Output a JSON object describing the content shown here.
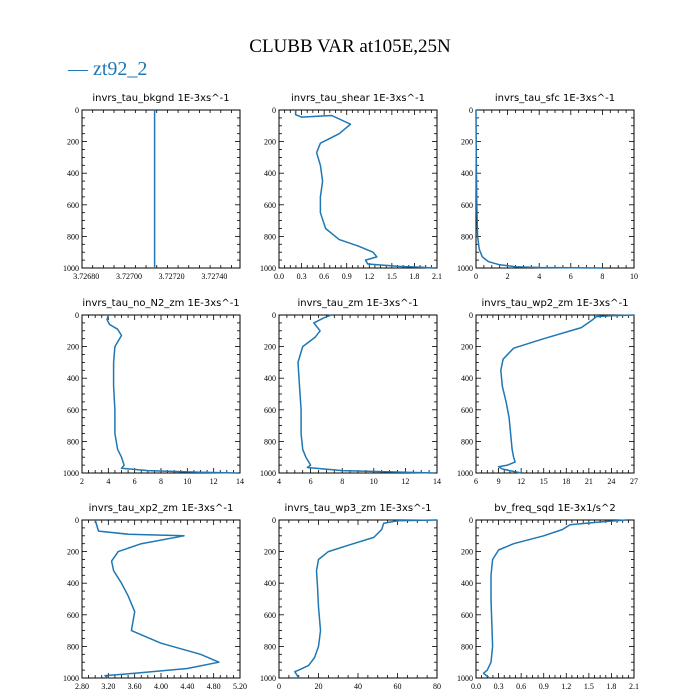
{
  "title": "CLUBB VAR at105E,25N",
  "legend": {
    "label": "— zt92_2",
    "color": "#1f77b4"
  },
  "chart_data": [
    {
      "type": "line",
      "title": "invrs_tau_bkgnd   1E-3xs^-1",
      "xlim": [
        3.72678,
        3.72752
      ],
      "ylim": [
        1000,
        0
      ],
      "xticks": [
        3.7268,
        3.727,
        3.7272,
        3.7274
      ],
      "xtick_labels": [
        "3.72680",
        "3.72700",
        "3.72720",
        "3.72740"
      ],
      "yticks": [
        0,
        200,
        400,
        600,
        800,
        1000
      ],
      "series": [
        {
          "name": "zt92_2",
          "x": [
            3.72712,
            3.72712
          ],
          "y": [
            0,
            1000
          ]
        }
      ]
    },
    {
      "type": "line",
      "title": "invrs_tau_shear   1E-3xs^-1",
      "xlim": [
        0,
        2.1
      ],
      "ylim": [
        1000,
        0
      ],
      "xticks": [
        0,
        0.3,
        0.6,
        0.9,
        1.2,
        1.5,
        1.8,
        2.1
      ],
      "xtick_labels": [
        "0.0",
        "0.3",
        "0.6",
        "0.9",
        "1.2",
        "1.5",
        "1.8",
        "2.1"
      ],
      "yticks": [
        0,
        200,
        400,
        600,
        800,
        1000
      ],
      "series": [
        {
          "name": "zt92_2",
          "x": [
            0.22,
            0.22,
            0.3,
            0.7,
            0.95,
            0.8,
            0.55,
            0.5,
            0.55,
            0.58,
            0.55,
            0.55,
            0.62,
            0.8,
            1.05,
            1.25,
            1.3,
            1.15,
            1.18,
            1.6,
            1.9,
            2.05
          ],
          "y": [
            0,
            30,
            45,
            35,
            90,
            150,
            210,
            270,
            350,
            450,
            550,
            650,
            750,
            820,
            860,
            900,
            930,
            950,
            975,
            990,
            995,
            1000
          ]
        }
      ]
    },
    {
      "type": "line",
      "title": "invrs_tau_sfc   1E-3xs^-1",
      "xlim": [
        0,
        10
      ],
      "ylim": [
        1000,
        0
      ],
      "xticks": [
        0,
        2,
        4,
        6,
        8,
        10
      ],
      "xtick_labels": [
        "0",
        "2",
        "4",
        "6",
        "8",
        "10"
      ],
      "yticks": [
        0,
        200,
        400,
        600,
        800,
        1000
      ],
      "series": [
        {
          "name": "zt92_2",
          "x": [
            0.0,
            0.02,
            0.05,
            0.1,
            0.2,
            0.4,
            0.8,
            1.5,
            2.5,
            4.0,
            8.0
          ],
          "y": [
            0,
            300,
            600,
            800,
            880,
            930,
            960,
            980,
            992,
            997,
            1000
          ]
        }
      ]
    },
    {
      "type": "line",
      "title": "invrs_tau_no_N2_zm   1E-3xs^-1",
      "xlim": [
        2,
        14
      ],
      "ylim": [
        1000,
        0
      ],
      "xticks": [
        2,
        4,
        6,
        8,
        10,
        12,
        14
      ],
      "xtick_labels": [
        "2",
        "4",
        "6",
        "8",
        "10",
        "12",
        "14"
      ],
      "yticks": [
        0,
        200,
        400,
        600,
        800,
        1000
      ],
      "series": [
        {
          "name": "zt92_2",
          "x": [
            4.0,
            3.9,
            4.1,
            4.7,
            5.0,
            4.5,
            4.4,
            4.4,
            4.5,
            4.5,
            4.7,
            5.0,
            5.2,
            5.0,
            7.0,
            11.0,
            13.8
          ],
          "y": [
            0,
            30,
            60,
            90,
            130,
            200,
            300,
            450,
            600,
            750,
            850,
            900,
            950,
            970,
            985,
            995,
            1000
          ]
        }
      ]
    },
    {
      "type": "line",
      "title": "invrs_tau_zm   1E-3xs^-1",
      "xlim": [
        4,
        14
      ],
      "ylim": [
        1000,
        0
      ],
      "xticks": [
        4,
        6,
        8,
        10,
        12,
        14
      ],
      "xtick_labels": [
        "4",
        "6",
        "8",
        "10",
        "12",
        "14"
      ],
      "yticks": [
        0,
        200,
        400,
        600,
        800,
        1000
      ],
      "series": [
        {
          "name": "zt92_2",
          "x": [
            7.3,
            6.8,
            6.2,
            6.6,
            6.3,
            5.5,
            5.2,
            5.3,
            5.4,
            5.4,
            5.5,
            5.7,
            6.0,
            5.8,
            8.0,
            12.0,
            13.8
          ],
          "y": [
            0,
            20,
            50,
            100,
            140,
            200,
            300,
            450,
            600,
            750,
            850,
            900,
            950,
            965,
            985,
            995,
            1000
          ]
        }
      ]
    },
    {
      "type": "line",
      "title": "invrs_tau_wp2_zm   1E-3xs^-1",
      "xlim": [
        6,
        27
      ],
      "ylim": [
        1000,
        0
      ],
      "xticks": [
        6,
        9,
        12,
        15,
        18,
        21,
        24,
        27
      ],
      "xtick_labels": [
        "6",
        "9",
        "12",
        "15",
        "18",
        "21",
        "24",
        "27"
      ],
      "yticks": [
        0,
        200,
        400,
        600,
        800,
        1000
      ],
      "series": [
        {
          "name": "zt92_2",
          "x": [
            27,
            24,
            22,
            21.5,
            20,
            15,
            11,
            9.6,
            9.3,
            9.5,
            10.0,
            10.4,
            10.6,
            10.8,
            11.0,
            11.2,
            10.2,
            9.0,
            9.5,
            12.0
          ],
          "y": [
            0,
            5,
            10,
            30,
            80,
            150,
            210,
            280,
            350,
            450,
            550,
            650,
            750,
            850,
            900,
            930,
            950,
            960,
            975,
            1000
          ]
        }
      ]
    },
    {
      "type": "line",
      "title": "invrs_tau_xp2_zm   1E-3xs^-1",
      "xlim": [
        2.8,
        5.2
      ],
      "ylim": [
        1000,
        0
      ],
      "xticks": [
        2.8,
        3.2,
        3.6,
        4.0,
        4.4,
        4.8,
        5.2
      ],
      "xtick_labels": [
        "2.80",
        "3.20",
        "3.60",
        "4.00",
        "4.40",
        "4.80",
        "5.20"
      ],
      "yticks": [
        0,
        200,
        400,
        600,
        800,
        1000
      ],
      "series": [
        {
          "name": "zt92_2",
          "x": [
            3.0,
            3.05,
            3.5,
            4.35,
            3.7,
            3.35,
            3.25,
            3.28,
            3.4,
            3.5,
            3.6,
            3.55,
            4.0,
            4.6,
            4.88,
            4.4,
            3.6,
            3.15,
            3.2
          ],
          "y": [
            0,
            70,
            90,
            100,
            150,
            200,
            260,
            320,
            400,
            480,
            580,
            700,
            780,
            850,
            900,
            940,
            970,
            985,
            1000
          ]
        }
      ]
    },
    {
      "type": "line",
      "title": "invrs_tau_wp3_zm   1E-3xs^-1",
      "xlim": [
        0,
        80
      ],
      "ylim": [
        1000,
        0
      ],
      "xticks": [
        0,
        20,
        40,
        60,
        80
      ],
      "xtick_labels": [
        "0",
        "20",
        "40",
        "60",
        "80"
      ],
      "yticks": [
        0,
        200,
        400,
        600,
        800,
        1000
      ],
      "series": [
        {
          "name": "zt92_2",
          "x": [
            80,
            60,
            53,
            52,
            48,
            35,
            25,
            20,
            19,
            19.5,
            20,
            21,
            20,
            18,
            15,
            10,
            8,
            10
          ],
          "y": [
            0,
            5,
            20,
            60,
            110,
            160,
            200,
            250,
            320,
            420,
            550,
            700,
            800,
            870,
            920,
            950,
            960,
            1000
          ]
        }
      ]
    },
    {
      "type": "line",
      "title": "bv_freq_sqd   1E-3x1/s^2",
      "xlim": [
        0,
        2.1
      ],
      "ylim": [
        1000,
        0
      ],
      "xticks": [
        0,
        0.3,
        0.6,
        0.9,
        1.2,
        1.5,
        1.8,
        2.1
      ],
      "xtick_labels": [
        "0.0",
        "0.3",
        "0.6",
        "0.9",
        "1.2",
        "1.5",
        "1.8",
        "2.1"
      ],
      "yticks": [
        0,
        200,
        400,
        600,
        800,
        1000
      ],
      "series": [
        {
          "name": "zt92_2",
          "x": [
            2.0,
            1.7,
            1.25,
            1.15,
            0.9,
            0.5,
            0.3,
            0.22,
            0.2,
            0.2,
            0.21,
            0.22,
            0.2,
            0.15,
            0.1,
            0.18
          ],
          "y": [
            0,
            10,
            30,
            60,
            100,
            150,
            190,
            250,
            350,
            500,
            650,
            800,
            900,
            950,
            970,
            1000
          ]
        }
      ]
    }
  ]
}
